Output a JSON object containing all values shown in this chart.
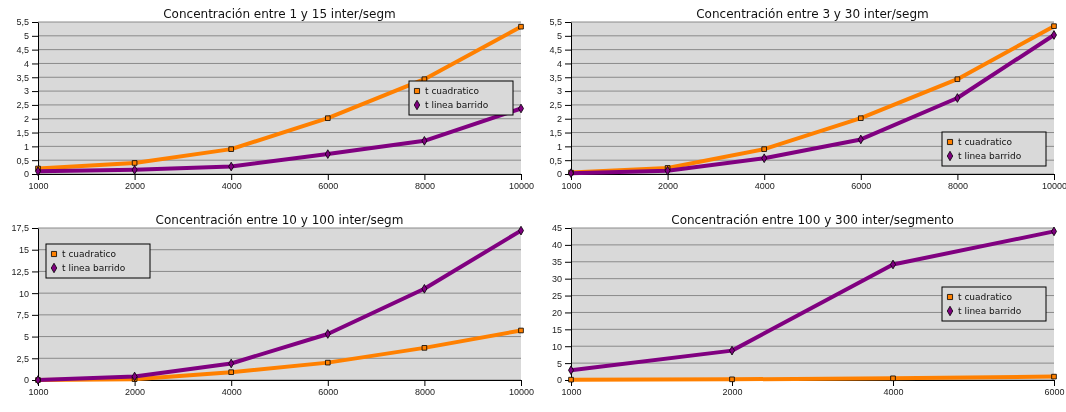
{
  "chart_data": [
    {
      "type": "line",
      "title": "Concentración entre 1 y 15 inter/segm",
      "categories": [
        "1000",
        "2000",
        "4000",
        "6000",
        "8000",
        "10000"
      ],
      "legend": "right",
      "grid": "y",
      "ylim": [
        0,
        5.5
      ],
      "yticks": [
        0,
        {
          "value": 0.5,
          "label": "0,5"
        },
        1,
        {
          "value": 1.5,
          "label": "1,5"
        },
        2,
        {
          "value": 2.5,
          "label": "2,5"
        },
        3,
        {
          "value": 3.5,
          "label": "3,5"
        },
        4,
        {
          "value": 4.5,
          "label": "4,5"
        },
        5,
        {
          "value": 5.5,
          "label": "5,5"
        }
      ],
      "series": [
        {
          "name": "t cuadratico",
          "color": "#ff8000",
          "marker": "square",
          "values": [
            0.2,
            0.4,
            0.9,
            2.02,
            3.43,
            5.33
          ]
        },
        {
          "name": "t linea barrido",
          "color": "#800080",
          "marker": "diamond",
          "values": [
            0.1,
            0.15,
            0.27,
            0.72,
            1.2,
            2.37
          ]
        }
      ]
    },
    {
      "type": "line",
      "title": "Concentración entre 3 y 30 inter/segm",
      "categories": [
        "1000",
        "2000",
        "4000",
        "6000",
        "8000",
        "10000"
      ],
      "legend": "bottom right",
      "grid": "y",
      "ylim": [
        0,
        5.5
      ],
      "yticks": [
        0,
        {
          "value": 0.5,
          "label": "0,5"
        },
        1,
        {
          "value": 1.5,
          "label": "1,5"
        },
        2,
        {
          "value": 2.5,
          "label": "2,5"
        },
        3,
        {
          "value": 3.5,
          "label": "3,5"
        },
        4,
        {
          "value": 4.5,
          "label": "4,5"
        },
        5,
        {
          "value": 5.5,
          "label": "5,5"
        }
      ],
      "series": [
        {
          "name": "t cuadratico",
          "color": "#ff8000",
          "marker": "square",
          "values": [
            0.05,
            0.22,
            0.9,
            2.02,
            3.43,
            5.35
          ]
        },
        {
          "name": "t linea barrido",
          "color": "#800080",
          "marker": "diamond",
          "values": [
            0.03,
            0.12,
            0.57,
            1.25,
            2.75,
            5.03
          ]
        }
      ]
    },
    {
      "type": "line",
      "title": "Concentración entre 10 y 100 inter/segm",
      "categories": [
        "1000",
        "2000",
        "4000",
        "6000",
        "8000",
        "10000"
      ],
      "legend": "top left",
      "grid": "y",
      "ylim": [
        0,
        17.5
      ],
      "yticks": [
        0,
        {
          "value": 2.5,
          "label": "2,5"
        },
        5,
        {
          "value": 7.5,
          "label": "7,5"
        },
        10,
        {
          "value": 12.5,
          "label": "12,5"
        },
        15,
        {
          "value": 17.5,
          "label": "17,5"
        }
      ],
      "series": [
        {
          "name": "t cuadratico",
          "color": "#ff8000",
          "marker": "square",
          "values": [
            0,
            0.1,
            0.9,
            2,
            3.7,
            5.7
          ]
        },
        {
          "name": "t linea barrido",
          "color": "#800080",
          "marker": "diamond",
          "values": [
            0,
            0.4,
            1.9,
            5.3,
            10.5,
            17.2
          ]
        }
      ]
    },
    {
      "type": "line",
      "title": "Concentración entre 100 y 300 inter/segmento",
      "categories": [
        "1000",
        "2000",
        "4000",
        "6000"
      ],
      "legend": "right",
      "grid": "y",
      "ylim": [
        0,
        45
      ],
      "yticks": [
        0,
        5,
        10,
        15,
        20,
        25,
        30,
        35,
        40,
        45
      ],
      "series": [
        {
          "name": "t cuadratico",
          "color": "#ff8000",
          "marker": "square",
          "values": [
            0.1,
            0.2,
            0.5,
            1.0
          ]
        },
        {
          "name": "t linea barrido",
          "color": "#800080",
          "marker": "diamond",
          "values": [
            2.9,
            8.7,
            34.2,
            44
          ]
        }
      ]
    }
  ]
}
